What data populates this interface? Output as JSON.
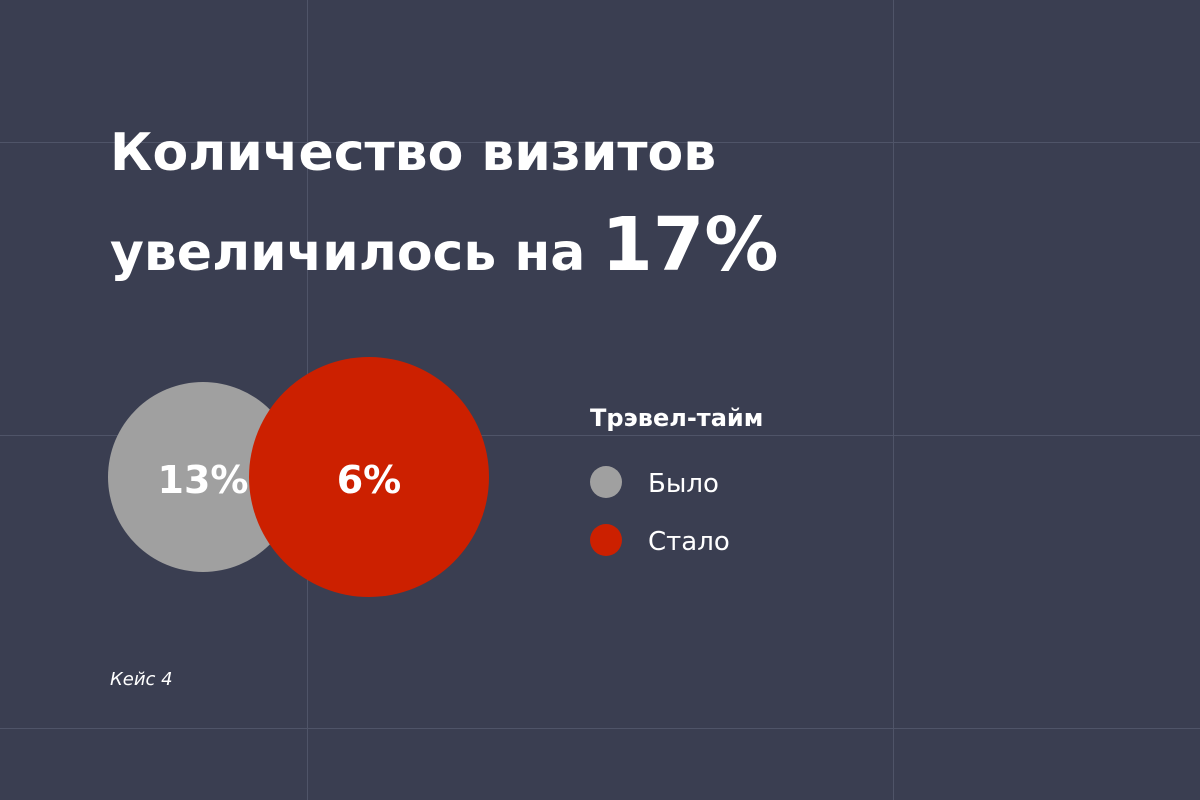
{
  "header": {
    "title_lines": [
      "Количество визитов",
      "увеличилось на"
    ],
    "highlight": "17%"
  },
  "circles": [
    {
      "label": "13%",
      "color": "#a0a0a0"
    },
    {
      "label": "6%",
      "color": "#cc2000"
    }
  ],
  "legend": {
    "title": "Трэвел-тайм",
    "items": [
      {
        "label": "Было",
        "color": "#a0a0a0"
      },
      {
        "label": "Стало",
        "color": "#cc2000"
      }
    ]
  },
  "footer": "Кейс 4"
}
